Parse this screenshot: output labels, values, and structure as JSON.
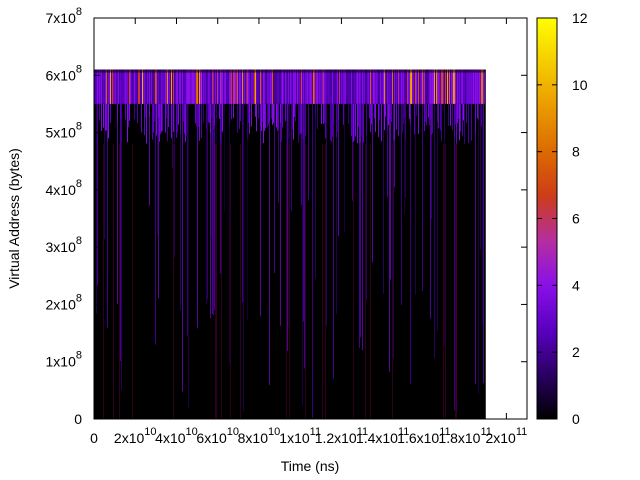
{
  "chart_data": {
    "type": "heatmap",
    "title": "",
    "xlabel": "Time (ns)",
    "ylabel": "Virtual Address (bytes)",
    "xlim": [
      0,
      210000000000
    ],
    "ylim": [
      0,
      700000000
    ],
    "data_extent": {
      "x": [
        0,
        190000000000
      ],
      "y": [
        0,
        610000000
      ]
    },
    "x_ticks": [
      {
        "value": 0,
        "mantissa": "0",
        "exponent": ""
      },
      {
        "value": 20000000000,
        "mantissa": "2x10",
        "exponent": "10"
      },
      {
        "value": 40000000000,
        "mantissa": "4x10",
        "exponent": "10"
      },
      {
        "value": 60000000000,
        "mantissa": "6x10",
        "exponent": "10"
      },
      {
        "value": 80000000000,
        "mantissa": "8x10",
        "exponent": "10"
      },
      {
        "value": 100000000000,
        "mantissa": "1x10",
        "exponent": "11"
      },
      {
        "value": 120000000000,
        "mantissa": "1.2x10",
        "exponent": "11"
      },
      {
        "value": 140000000000,
        "mantissa": "1.4x10",
        "exponent": "11"
      },
      {
        "value": 160000000000,
        "mantissa": "1.6x10",
        "exponent": "11"
      },
      {
        "value": 180000000000,
        "mantissa": "1.8x10",
        "exponent": "11"
      },
      {
        "value": 200000000000,
        "mantissa": "2x10",
        "exponent": "11"
      }
    ],
    "y_ticks": [
      {
        "value": 0,
        "mantissa": "0",
        "exponent": ""
      },
      {
        "value": 100000000,
        "mantissa": "1x10",
        "exponent": "8"
      },
      {
        "value": 200000000,
        "mantissa": "2x10",
        "exponent": "8"
      },
      {
        "value": 300000000,
        "mantissa": "3x10",
        "exponent": "8"
      },
      {
        "value": 400000000,
        "mantissa": "4x10",
        "exponent": "8"
      },
      {
        "value": 500000000,
        "mantissa": "5x10",
        "exponent": "8"
      },
      {
        "value": 600000000,
        "mantissa": "6x10",
        "exponent": "8"
      },
      {
        "value": 700000000,
        "mantissa": "7x10",
        "exponent": "8"
      }
    ],
    "colorbar": {
      "range": [
        0,
        12
      ],
      "ticks": [
        {
          "value": 0,
          "label": "0"
        },
        {
          "value": 2,
          "label": "2"
        },
        {
          "value": 4,
          "label": "4"
        },
        {
          "value": 6,
          "label": "6"
        },
        {
          "value": 8,
          "label": "8"
        },
        {
          "value": 10,
          "label": "10"
        },
        {
          "value": 12,
          "label": "12"
        }
      ],
      "palette": [
        "#000000",
        "#2a0063",
        "#5a00c0",
        "#8a10e8",
        "#b52ea0",
        "#cc3c18",
        "#dc6a00",
        "#ea9a00",
        "#f5cc00",
        "#ffff00"
      ]
    },
    "grid": false,
    "legend": "none"
  }
}
